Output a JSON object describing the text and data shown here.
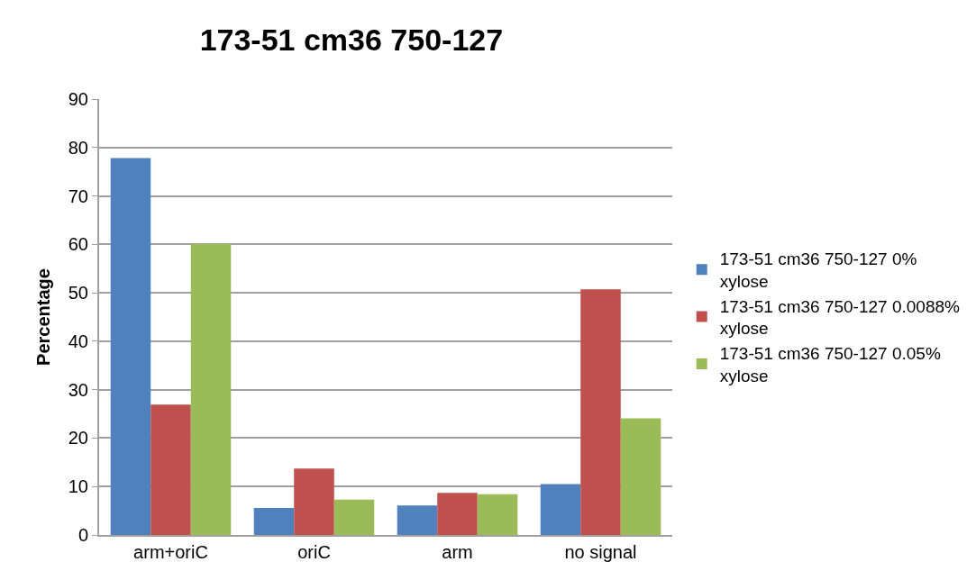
{
  "chart_data": {
    "type": "bar",
    "title": "173-51 cm36 750-127",
    "ylabel": "Percentage",
    "categories": [
      "arm+oriC",
      "oriC",
      "arm",
      "no signal"
    ],
    "series": [
      {
        "name": "173-51 cm36 750-127 0% xylose",
        "color": "#4f81bd",
        "values": [
          77.8,
          5.6,
          6.1,
          10.5
        ]
      },
      {
        "name": "173-51 cm36 750-127 0.0088% xylose",
        "color": "#c0504d",
        "values": [
          26.9,
          13.7,
          8.7,
          50.7
        ]
      },
      {
        "name": "173-51 cm36 750-127 0.05% xylose",
        "color": "#9bbb59",
        "values": [
          60.1,
          7.3,
          8.4,
          24.1
        ]
      }
    ],
    "ylim": [
      0,
      90
    ],
    "yticks": [
      0,
      10,
      20,
      30,
      40,
      50,
      60,
      70,
      80,
      90
    ],
    "grid": "y",
    "legend": "right"
  }
}
